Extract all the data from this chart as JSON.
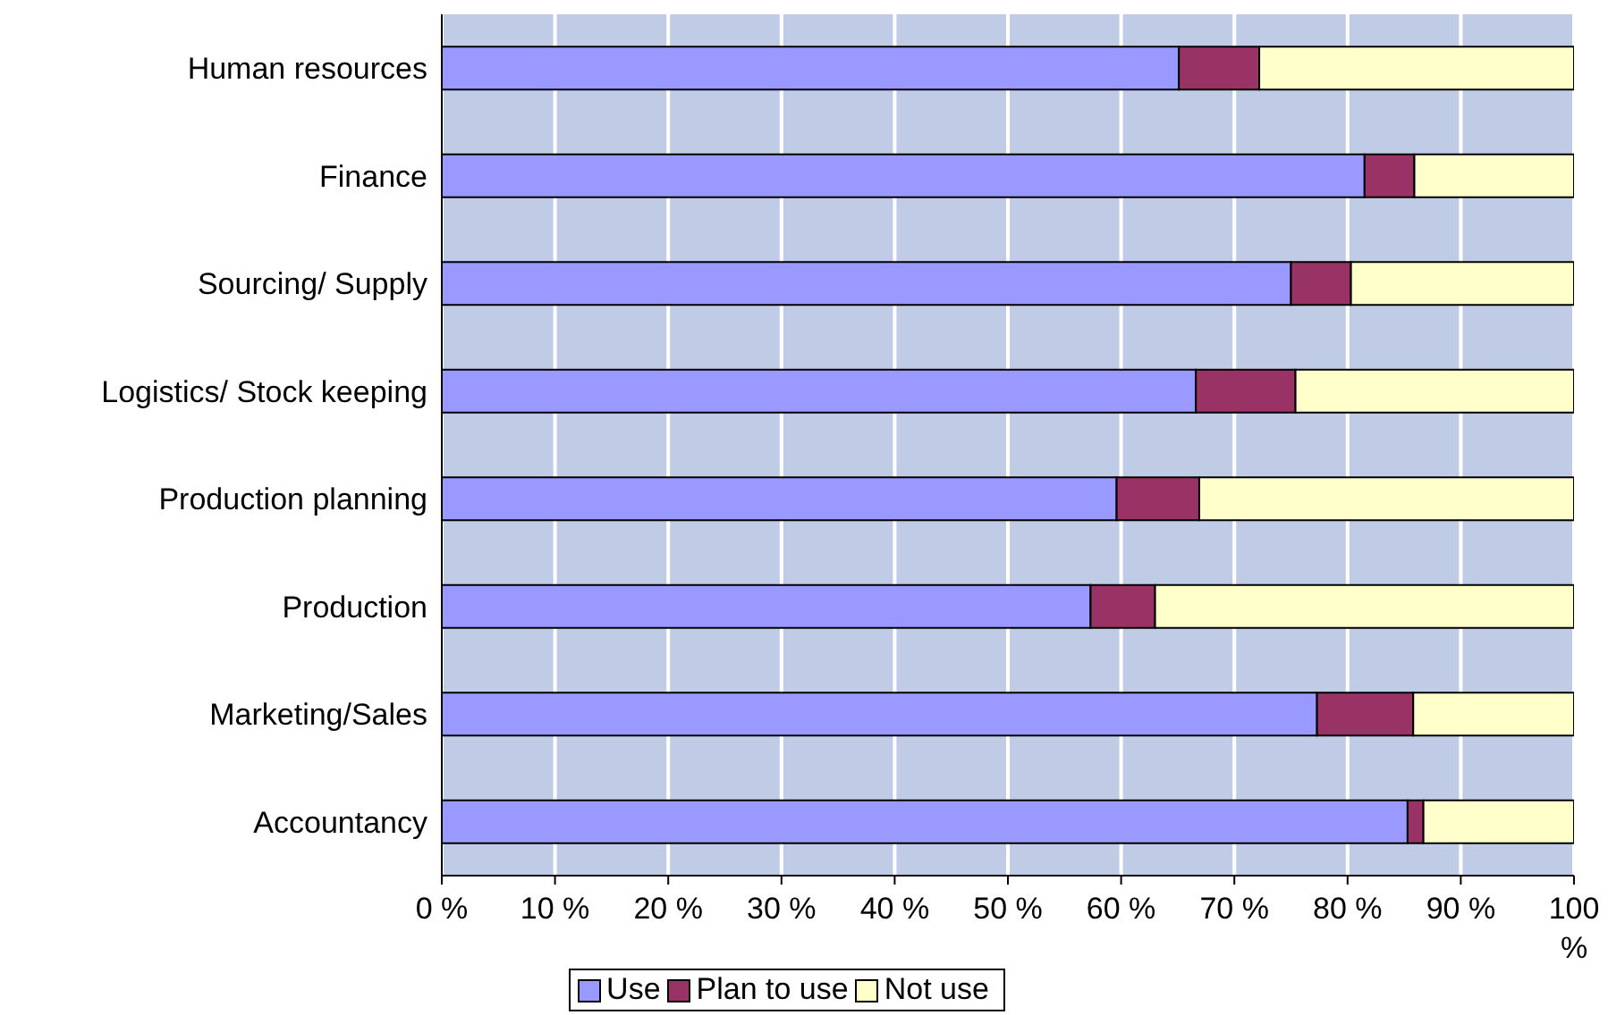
{
  "chart_data": {
    "type": "bar",
    "orientation": "horizontal",
    "stacked": true,
    "categories": [
      "Human resources",
      "Finance",
      "Sourcing/ Supply",
      "Logistics/ Stock keeping",
      "Production planning",
      "Production",
      "Marketing/Sales",
      "Accountancy"
    ],
    "series": [
      {
        "name": "Use",
        "color": "#9999ff",
        "values": [
          65.1,
          81.5,
          75,
          66.6,
          59.6,
          57.3,
          77.3,
          85.3
        ]
      },
      {
        "name": "Plan to use",
        "color": "#993366",
        "values": [
          7.1,
          4.4,
          5.3,
          8.8,
          7.3,
          5.7,
          8.5,
          1.4
        ]
      },
      {
        "name": "Not use",
        "color": "#ffffcc",
        "values": [
          27.8,
          14.1,
          19.7,
          24.6,
          33.1,
          37,
          14.2,
          13.3
        ]
      }
    ],
    "xlim": [
      0,
      100
    ],
    "xticks": [
      {
        "value": 0,
        "label": "0 %"
      },
      {
        "value": 10,
        "label": "10 %"
      },
      {
        "value": 20,
        "label": "20 %"
      },
      {
        "value": 30,
        "label": "30 %"
      },
      {
        "value": 40,
        "label": "40 %"
      },
      {
        "value": 50,
        "label": "50 %"
      },
      {
        "value": 60,
        "label": "60 %"
      },
      {
        "value": 70,
        "label": "70 %"
      },
      {
        "value": 80,
        "label": "80 %"
      },
      {
        "value": 90,
        "label": "90 %"
      },
      {
        "value": 100,
        "label": "100 %"
      }
    ],
    "grid": "x",
    "legend": "bottom"
  }
}
